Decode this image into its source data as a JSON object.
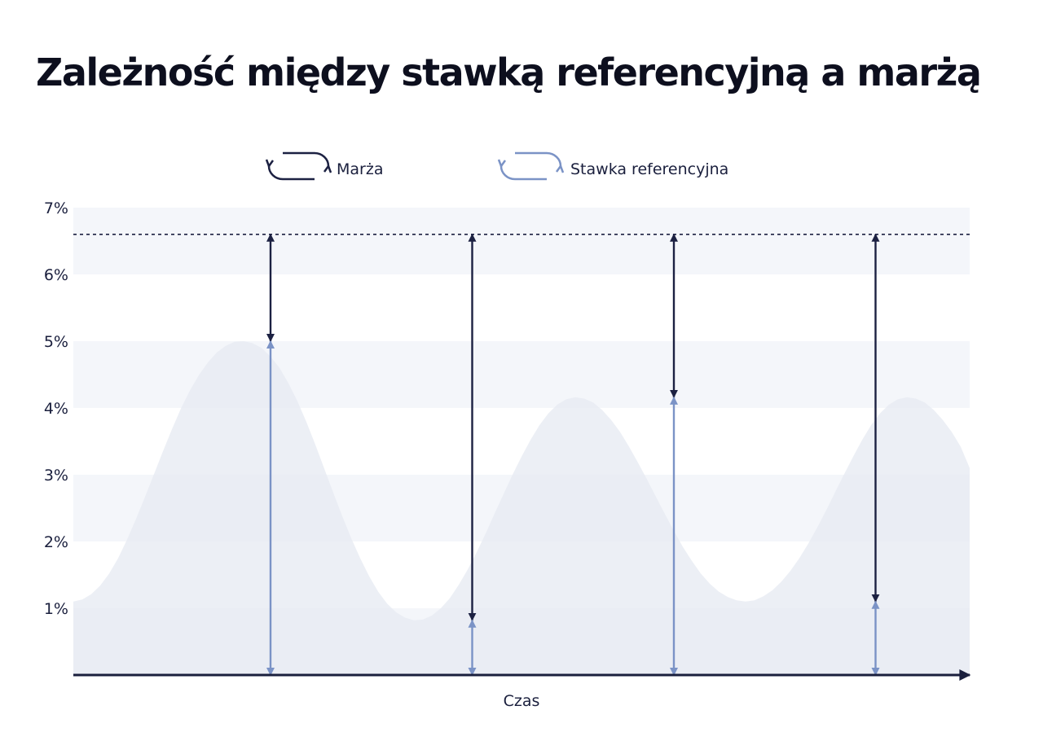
{
  "title": "Zależność między stawką referencyjną a marżą",
  "colors": {
    "margin": "#1c2142",
    "reference": "#7b93c6",
    "area": "#e7ebf2",
    "band": "#f4f6fa",
    "axis": "#1a1f3d"
  },
  "chart_data": {
    "type": "area",
    "title": "Zależność między stawką referencyjną a marżą",
    "xlabel": "Czas",
    "ylabel": "",
    "ylim": [
      0,
      7
    ],
    "yticks": [
      "1%",
      "2%",
      "3%",
      "4%",
      "5%",
      "6%",
      "7%"
    ],
    "grid": false,
    "legend": [
      {
        "name": "Marża",
        "icon": "cycle-arrows-icon"
      },
      {
        "name": "Stawka referencyjna",
        "icon": "cycle-arrows-icon"
      }
    ],
    "legend_position": "top-center",
    "total_rate_line": 6.6,
    "reference_rate_curve": {
      "x": [
        0,
        1,
        2,
        3,
        4,
        5,
        6,
        7,
        8,
        9,
        10,
        11,
        12,
        13,
        14,
        15,
        16,
        17,
        18,
        19,
        20,
        21,
        22,
        23,
        24,
        25,
        26,
        27,
        28,
        29,
        30,
        31,
        32,
        33,
        34,
        35,
        36,
        37,
        38,
        39,
        40,
        41,
        42,
        43,
        44,
        45,
        46,
        47,
        48,
        49,
        50,
        51,
        52,
        53,
        54,
        55,
        56,
        57,
        58,
        59,
        60,
        61,
        62,
        63,
        64,
        65,
        66,
        67,
        68,
        69,
        70,
        71,
        72,
        73,
        74,
        75,
        76,
        77,
        78,
        79,
        80,
        81,
        82,
        83,
        84,
        85,
        86,
        87,
        88,
        89,
        90,
        91,
        92,
        93,
        94,
        95,
        96,
        97,
        98,
        99,
        100
      ],
      "y": [
        1.1,
        1.13,
        1.21,
        1.34,
        1.52,
        1.75,
        2.03,
        2.34,
        2.67,
        3.01,
        3.35,
        3.68,
        3.99,
        4.26,
        4.49,
        4.68,
        4.83,
        4.93,
        4.99,
        5.0,
        4.97,
        4.9,
        4.77,
        4.6,
        4.37,
        4.1,
        3.79,
        3.45,
        3.09,
        2.73,
        2.38,
        2.05,
        1.75,
        1.48,
        1.25,
        1.07,
        0.94,
        0.86,
        0.82,
        0.83,
        0.89,
        1.0,
        1.15,
        1.35,
        1.58,
        1.84,
        2.12,
        2.42,
        2.71,
        3.0,
        3.27,
        3.52,
        3.74,
        3.92,
        4.05,
        4.13,
        4.16,
        4.14,
        4.08,
        3.97,
        3.82,
        3.64,
        3.42,
        3.18,
        2.93,
        2.67,
        2.41,
        2.16,
        1.92,
        1.71,
        1.52,
        1.37,
        1.25,
        1.17,
        1.12,
        1.1,
        1.12,
        1.18,
        1.27,
        1.4,
        1.56,
        1.75,
        1.97,
        2.21,
        2.47,
        2.74,
        3.01,
        3.27,
        3.52,
        3.74,
        3.92,
        4.05,
        4.13,
        4.16,
        4.14,
        4.08,
        3.97,
        3.82,
        3.64,
        3.42,
        3.1
      ]
    },
    "arrows": [
      {
        "x": 22,
        "reference_rate": 5.0,
        "total_rate": 6.6
      },
      {
        "x": 44.5,
        "reference_rate": 0.82,
        "total_rate": 6.6
      },
      {
        "x": 67,
        "reference_rate": 4.16,
        "total_rate": 6.6
      },
      {
        "x": 89.5,
        "reference_rate": 1.1,
        "total_rate": 6.6
      }
    ]
  }
}
